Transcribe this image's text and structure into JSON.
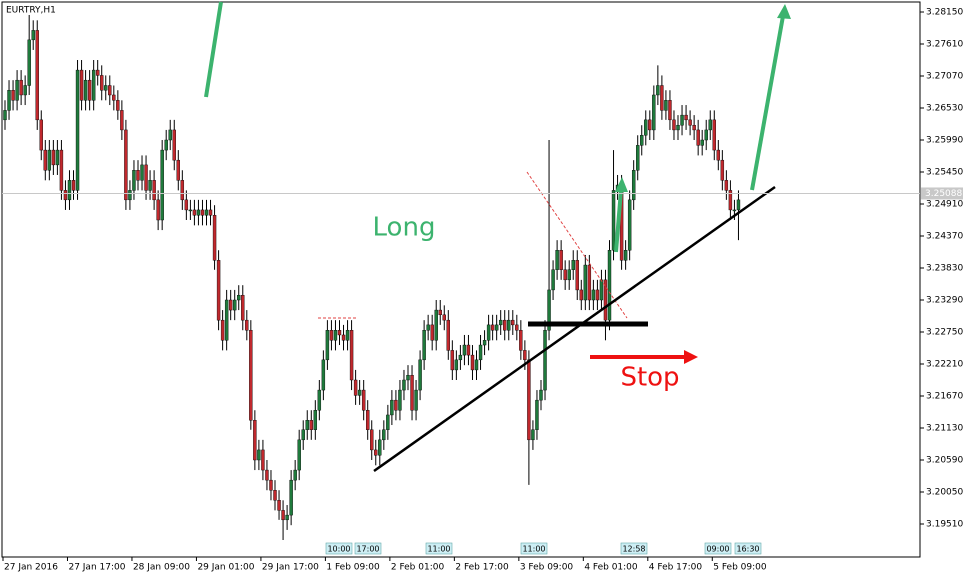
{
  "chart_data": {
    "type": "candlestick",
    "title": "EURTRY,H1",
    "categories": [
      "27 Jan 2016",
      null,
      null,
      null,
      null,
      null,
      null,
      null,
      null,
      null,
      null,
      null,
      null,
      null,
      null,
      null,
      "27 Jan 17:00",
      null,
      null,
      null,
      null,
      null,
      null,
      null,
      null,
      null,
      null,
      null,
      null,
      null,
      null,
      null,
      "28 Jan 09:00",
      null,
      null,
      null,
      null,
      null,
      null,
      null,
      null,
      null,
      null,
      null,
      null,
      null,
      null,
      null,
      "29 Jan 01:00",
      null,
      null,
      null,
      null,
      null,
      null,
      null,
      null,
      null,
      null,
      null,
      null,
      null,
      null,
      null,
      "29 Jan 17:00",
      null,
      null,
      null,
      null,
      null,
      null,
      null,
      null,
      null,
      null,
      null,
      null,
      null,
      null,
      null,
      "1 Feb 09:00",
      null,
      null,
      null,
      null,
      null,
      null,
      null,
      null,
      null,
      null,
      null,
      null,
      null,
      null,
      null,
      "2 Feb 01:00",
      null,
      null,
      null,
      null,
      null,
      null,
      null,
      null,
      null,
      null,
      null,
      null,
      null,
      null,
      null,
      "2 Feb 17:00",
      null,
      null,
      null,
      null,
      null,
      null,
      null,
      null,
      null,
      null,
      null,
      null,
      null,
      null,
      null,
      "3 Feb 09:00",
      null,
      null,
      null,
      null,
      null,
      null,
      null,
      null,
      null,
      null,
      null,
      null,
      null,
      null,
      null,
      "4 Feb 01:00",
      null,
      null,
      null,
      null,
      null,
      null,
      null,
      null,
      null,
      null,
      null,
      null,
      null,
      null,
      null,
      "4 Feb 17:00",
      null,
      null,
      null,
      null,
      null,
      null,
      null,
      null,
      null,
      null,
      null,
      null,
      null,
      null,
      null,
      "5 Feb 09:00",
      null,
      null,
      null,
      null,
      null,
      null
    ],
    "open": [
      3.2633,
      3.2649,
      3.2683,
      3.2666,
      3.27,
      3.2675,
      3.2691,
      3.2768,
      3.2784,
      3.2633,
      3.2582,
      3.2548,
      3.2582,
      3.2557,
      3.2582,
      3.2514,
      3.2498,
      3.2531,
      3.2514,
      3.2717,
      3.2666,
      3.27,
      3.2666,
      3.2717,
      3.2708,
      3.2683,
      3.2691,
      3.2675,
      3.2666,
      3.2649,
      3.2616,
      3.2498,
      3.2514,
      3.2548,
      3.2531,
      3.2557,
      3.2514,
      3.2531,
      3.2498,
      3.2464,
      3.2582,
      3.2599,
      3.2616,
      3.2565,
      3.2531,
      3.2498,
      3.2481,
      3.2481,
      3.2472,
      3.2481,
      3.2472,
      3.2481,
      3.2472,
      3.2396,
      3.2295,
      3.2261,
      3.2329,
      3.2312,
      3.2329,
      3.2337,
      3.2295,
      3.2278,
      3.2126,
      3.2059,
      3.2076,
      3.2042,
      3.2025,
      3.2008,
      3.1991,
      3.1974,
      3.1958,
      3.1966,
      3.2025,
      3.2042,
      3.2093,
      3.211,
      3.2126,
      3.211,
      3.2143,
      3.2177,
      3.2228,
      3.2278,
      3.2261,
      3.2278,
      3.227,
      3.2261,
      3.2278,
      3.2194,
      3.2168,
      3.2177,
      3.2143,
      3.211,
      3.2076,
      3.2067,
      3.2093,
      3.211,
      3.2135,
      3.216,
      3.2143,
      3.2177,
      3.2194,
      3.2202,
      3.2143,
      3.2177,
      3.2228,
      3.2278,
      3.2287,
      3.2261,
      3.2312,
      3.2304,
      3.2295,
      3.2244,
      3.2211,
      3.2228,
      3.2236,
      3.2253,
      3.2236,
      3.2211,
      3.2228,
      3.2253,
      3.2261,
      3.2287,
      3.2278,
      3.2287,
      3.2295,
      3.2278,
      3.2295,
      3.2287,
      3.2278,
      3.2244,
      3.2228,
      3.2093,
      3.211,
      3.216,
      3.2177,
      3.2278,
      3.2346,
      3.238,
      3.2413,
      3.238,
      3.2363,
      3.238,
      3.2396,
      3.2346,
      3.2329,
      3.2388,
      3.2329,
      3.2346,
      3.2329,
      3.2363,
      3.2295,
      3.2413,
      3.2514,
      3.2523,
      3.2396,
      3.2413,
      3.2498,
      3.2548,
      3.259,
      3.2607,
      3.2633,
      3.2616,
      3.2675,
      3.2691,
      3.2649,
      3.2666,
      3.2633,
      3.2616,
      3.2624,
      3.2641,
      3.2633,
      3.2624,
      3.2616,
      3.259,
      3.2599,
      3.2616,
      3.2633,
      3.2582,
      3.2565,
      3.2531,
      3.2514,
      3.2481,
      3.2481
    ],
    "high": [
      3.2666,
      3.27,
      3.27,
      3.2717,
      3.2717,
      3.2708,
      3.281,
      3.2801,
      3.2801,
      3.2649,
      3.2599,
      3.2599,
      3.2599,
      3.2599,
      3.2599,
      3.2531,
      3.2548,
      3.2548,
      3.2734,
      3.2734,
      3.2717,
      3.2717,
      3.2734,
      3.2734,
      3.2725,
      3.2708,
      3.2708,
      3.2691,
      3.2683,
      3.2666,
      3.2633,
      3.2531,
      3.2565,
      3.2565,
      3.2573,
      3.2573,
      3.2548,
      3.2548,
      3.2514,
      3.2599,
      3.2616,
      3.2633,
      3.2633,
      3.2582,
      3.2548,
      3.2514,
      3.2498,
      3.2498,
      3.2498,
      3.2498,
      3.2498,
      3.2498,
      3.2489,
      3.2413,
      3.2312,
      3.2346,
      3.2346,
      3.2346,
      3.2354,
      3.2354,
      3.2312,
      3.2295,
      3.2143,
      3.2093,
      3.2093,
      3.2059,
      3.2042,
      3.2025,
      3.2008,
      3.1991,
      3.1983,
      3.2042,
      3.2059,
      3.211,
      3.2126,
      3.2143,
      3.2143,
      3.216,
      3.2194,
      3.2244,
      3.2295,
      3.2295,
      3.2295,
      3.2295,
      3.2287,
      3.2295,
      3.2295,
      3.2211,
      3.2194,
      3.2194,
      3.216,
      3.2126,
      3.2093,
      3.211,
      3.2126,
      3.2152,
      3.2177,
      3.2177,
      3.2194,
      3.2211,
      3.2219,
      3.2219,
      3.2194,
      3.2244,
      3.2295,
      3.2304,
      3.2304,
      3.2329,
      3.2329,
      3.232,
      3.2312,
      3.2261,
      3.2244,
      3.2253,
      3.227,
      3.227,
      3.2253,
      3.2244,
      3.227,
      3.2278,
      3.2304,
      3.2304,
      3.2304,
      3.2312,
      3.2312,
      3.2312,
      3.2312,
      3.2304,
      3.2295,
      3.2261,
      3.2244,
      3.2126,
      3.2177,
      3.2194,
      3.2295,
      3.2599,
      3.2396,
      3.243,
      3.243,
      3.2396,
      3.2396,
      3.2413,
      3.2413,
      3.2363,
      3.2405,
      3.2405,
      3.2363,
      3.2363,
      3.238,
      3.238,
      3.243,
      3.2582,
      3.254,
      3.254,
      3.243,
      3.2514,
      3.2565,
      3.2607,
      3.2624,
      3.2649,
      3.2649,
      3.2691,
      3.2725,
      3.2708,
      3.2683,
      3.2683,
      3.2649,
      3.2641,
      3.2658,
      3.2658,
      3.2649,
      3.2641,
      3.2633,
      3.2616,
      3.2633,
      3.2649,
      3.2649,
      3.2599,
      3.2582,
      3.2548,
      3.2531,
      3.2498,
      3.2514
    ],
    "low": [
      3.2616,
      3.2633,
      3.2649,
      3.2649,
      3.2658,
      3.2658,
      3.2675,
      3.2751,
      3.2616,
      3.2565,
      3.2531,
      3.2531,
      3.254,
      3.254,
      3.2498,
      3.2481,
      3.2481,
      3.2498,
      3.2498,
      3.2649,
      3.2649,
      3.2649,
      3.2649,
      3.2691,
      3.2666,
      3.2666,
      3.2658,
      3.2649,
      3.2633,
      3.2599,
      3.2481,
      3.2481,
      3.2498,
      3.2514,
      3.2514,
      3.2498,
      3.2498,
      3.2481,
      3.2447,
      3.2447,
      3.2565,
      3.2582,
      3.2548,
      3.2514,
      3.2481,
      3.2464,
      3.2464,
      3.2455,
      3.2455,
      3.2455,
      3.2455,
      3.2455,
      3.238,
      3.2278,
      3.2244,
      3.2244,
      3.2295,
      3.2295,
      3.2312,
      3.2278,
      3.2261,
      3.211,
      3.2042,
      3.2042,
      3.2025,
      3.2008,
      3.1991,
      3.1974,
      3.1958,
      3.1924,
      3.1941,
      3.1949,
      3.2008,
      3.2025,
      3.2076,
      3.2093,
      3.2093,
      3.2093,
      3.2126,
      3.216,
      3.2211,
      3.2244,
      3.2244,
      3.2253,
      3.2244,
      3.2244,
      3.2177,
      3.2152,
      3.2152,
      3.2126,
      3.2093,
      3.2059,
      3.205,
      3.205,
      3.2076,
      3.2093,
      3.2118,
      3.2126,
      3.2126,
      3.216,
      3.2177,
      3.2126,
      3.2126,
      3.216,
      3.2211,
      3.2261,
      3.2244,
      3.2244,
      3.2287,
      3.2278,
      3.2228,
      3.2194,
      3.2194,
      3.2211,
      3.2219,
      3.2219,
      3.2194,
      3.2194,
      3.2211,
      3.2236,
      3.2244,
      3.2261,
      3.2261,
      3.227,
      3.2261,
      3.2261,
      3.227,
      3.2261,
      3.2228,
      3.2211,
      3.2017,
      3.2076,
      3.2093,
      3.2143,
      3.216,
      3.2261,
      3.2329,
      3.2363,
      3.2363,
      3.2346,
      3.2346,
      3.2363,
      3.2329,
      3.2312,
      3.2312,
      3.2312,
      3.2312,
      3.2312,
      3.2312,
      3.2261,
      3.2278,
      3.2396,
      3.2498,
      3.238,
      3.238,
      3.2396,
      3.2481,
      3.2531,
      3.2573,
      3.259,
      3.2599,
      3.2599,
      3.2658,
      3.2633,
      3.2633,
      3.2616,
      3.2599,
      3.2599,
      3.2607,
      3.2616,
      3.2607,
      3.2599,
      3.2573,
      3.2573,
      3.2582,
      3.2599,
      3.2565,
      3.2548,
      3.2514,
      3.2498,
      3.2464,
      3.2464,
      3.243
    ],
    "close": [
      3.2649,
      3.2683,
      3.2666,
      3.27,
      3.2675,
      3.2691,
      3.2768,
      3.2784,
      3.2633,
      3.2582,
      3.2548,
      3.2582,
      3.2557,
      3.2582,
      3.2514,
      3.2498,
      3.2531,
      3.2514,
      3.2717,
      3.2666,
      3.27,
      3.2666,
      3.2717,
      3.2708,
      3.2683,
      3.2691,
      3.2675,
      3.2666,
      3.2649,
      3.2616,
      3.2498,
      3.2514,
      3.2548,
      3.2531,
      3.2557,
      3.2514,
      3.2531,
      3.2498,
      3.2464,
      3.2582,
      3.2599,
      3.2616,
      3.2565,
      3.2531,
      3.2498,
      3.2481,
      3.2481,
      3.2472,
      3.2481,
      3.2472,
      3.2481,
      3.2472,
      3.2396,
      3.2295,
      3.2261,
      3.2329,
      3.2312,
      3.2329,
      3.2337,
      3.2295,
      3.2278,
      3.2126,
      3.2059,
      3.2076,
      3.2042,
      3.2025,
      3.2008,
      3.1991,
      3.1974,
      3.1958,
      3.1966,
      3.2025,
      3.2042,
      3.2093,
      3.211,
      3.2126,
      3.211,
      3.2143,
      3.2177,
      3.2228,
      3.2278,
      3.2261,
      3.2278,
      3.227,
      3.2261,
      3.2278,
      3.2194,
      3.2168,
      3.2177,
      3.2143,
      3.211,
      3.2076,
      3.2067,
      3.2093,
      3.211,
      3.2135,
      3.216,
      3.2143,
      3.2177,
      3.2194,
      3.2202,
      3.2143,
      3.2177,
      3.2228,
      3.2278,
      3.2287,
      3.2261,
      3.2312,
      3.2304,
      3.2295,
      3.2244,
      3.2211,
      3.2228,
      3.2236,
      3.2253,
      3.2236,
      3.2211,
      3.2228,
      3.2253,
      3.2261,
      3.2287,
      3.2278,
      3.2287,
      3.2295,
      3.2278,
      3.2295,
      3.2287,
      3.2278,
      3.2244,
      3.2228,
      3.2093,
      3.211,
      3.216,
      3.2177,
      3.2278,
      3.2346,
      3.238,
      3.2413,
      3.238,
      3.2363,
      3.238,
      3.2396,
      3.2346,
      3.2329,
      3.2388,
      3.2329,
      3.2346,
      3.2329,
      3.2363,
      3.2295,
      3.2413,
      3.2514,
      3.2523,
      3.2396,
      3.2413,
      3.2498,
      3.2548,
      3.259,
      3.2607,
      3.2633,
      3.2616,
      3.2675,
      3.2691,
      3.2649,
      3.2666,
      3.2633,
      3.2616,
      3.2624,
      3.2641,
      3.2633,
      3.2624,
      3.2616,
      3.259,
      3.2599,
      3.2616,
      3.2633,
      3.2582,
      3.2565,
      3.2531,
      3.2514,
      3.2481,
      3.2481,
      3.2498
    ],
    "up_color": "#1f7a3c",
    "down_color": "#c0282d",
    "ylim": [
      3.18953,
      3.28319
    ],
    "yticks": [
      {
        "value": 3.2815,
        "label": "3.28150"
      },
      {
        "value": 3.2761,
        "label": "3.27610"
      },
      {
        "value": 3.2707,
        "label": "3.27070"
      },
      {
        "value": 3.2653,
        "label": "3.26530"
      },
      {
        "value": 3.2599,
        "label": "3.25990"
      },
      {
        "value": 3.2545,
        "label": "3.25450"
      },
      {
        "value": 3.2491,
        "label": "3.24910"
      },
      {
        "value": 3.2437,
        "label": "3.24370"
      },
      {
        "value": 3.2383,
        "label": "3.23830"
      },
      {
        "value": 3.2329,
        "label": "3.23290"
      },
      {
        "value": 3.2275,
        "label": "3.22750"
      },
      {
        "value": 3.2221,
        "label": "3.22210"
      },
      {
        "value": 3.2167,
        "label": "3.21670"
      },
      {
        "value": 3.2113,
        "label": "3.21130"
      },
      {
        "value": 3.2059,
        "label": "3.20590"
      },
      {
        "value": 3.2005,
        "label": "3.20050"
      },
      {
        "value": 3.1951,
        "label": "3.19510"
      }
    ],
    "current_price": 3.25088,
    "annotations": {
      "long": "Long",
      "stop": "Stop"
    },
    "events": [
      "10:00",
      "17:00",
      "11:00",
      "11:00",
      "12:58",
      "09:00",
      "16:30"
    ]
  }
}
